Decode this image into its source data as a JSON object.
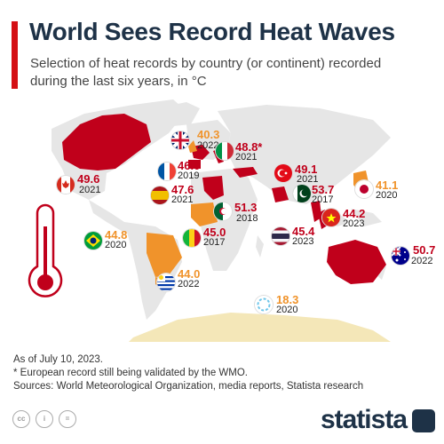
{
  "header": {
    "title": "World Sees Record Heat Waves",
    "subtitle": "Selection of heat records by country (or continent) recorded during the last six years, in °C"
  },
  "colors": {
    "accent": "#d40f14",
    "record_red": "#c0001b",
    "record_orange": "#f0932b",
    "record_light_blue": "#6fc6ea",
    "land": "#e6e6e6"
  },
  "chart_data": {
    "type": "table",
    "unit": "°C",
    "records": [
      {
        "country": "United Kingdom",
        "value": "40.3",
        "year": "2022",
        "color": "#f0932b"
      },
      {
        "country": "Italy",
        "value": "48.8*",
        "year": "2021",
        "color": "#c0001b"
      },
      {
        "country": "France",
        "value": "46.0",
        "year": "2019",
        "color": "#c0001b"
      },
      {
        "country": "Canada",
        "value": "49.6",
        "year": "2021",
        "color": "#c0001b"
      },
      {
        "country": "Spain",
        "value": "47.6",
        "year": "2021",
        "color": "#c0001b"
      },
      {
        "country": "Turkey",
        "value": "49.1",
        "year": "2021",
        "color": "#c0001b"
      },
      {
        "country": "Pakistan",
        "value": "53.7",
        "year": "2017",
        "color": "#c0001b"
      },
      {
        "country": "Japan",
        "value": "41.1",
        "year": "2020",
        "color": "#f0932b"
      },
      {
        "country": "Algeria",
        "value": "51.3",
        "year": "2018",
        "color": "#c0001b"
      },
      {
        "country": "Mali",
        "value": "45.0",
        "year": "2017",
        "color": "#c0001b"
      },
      {
        "country": "Brazil",
        "value": "44.8",
        "year": "2020",
        "color": "#f0932b"
      },
      {
        "country": "Vietnam",
        "value": "44.2",
        "year": "2023",
        "color": "#c0001b"
      },
      {
        "country": "Thailand",
        "value": "45.4",
        "year": "2023",
        "color": "#c0001b"
      },
      {
        "country": "Australia",
        "value": "50.7",
        "year": "2022",
        "color": "#c0001b"
      },
      {
        "country": "Uruguay",
        "value": "44.0",
        "year": "2022",
        "color": "#f0932b"
      },
      {
        "country": "Antarctica",
        "value": "18.3",
        "year": "2020",
        "color": "#f0932b"
      }
    ]
  },
  "notes": {
    "asof": "As of July 10, 2023.",
    "footnote": "* European record still being validated by the WMO.",
    "sources": "Sources: World Meteorological Organization, media reports, Statista research"
  },
  "footer": {
    "brand": "statista",
    "license_icons": [
      "cc-icon",
      "by-icon",
      "nd-icon"
    ]
  }
}
